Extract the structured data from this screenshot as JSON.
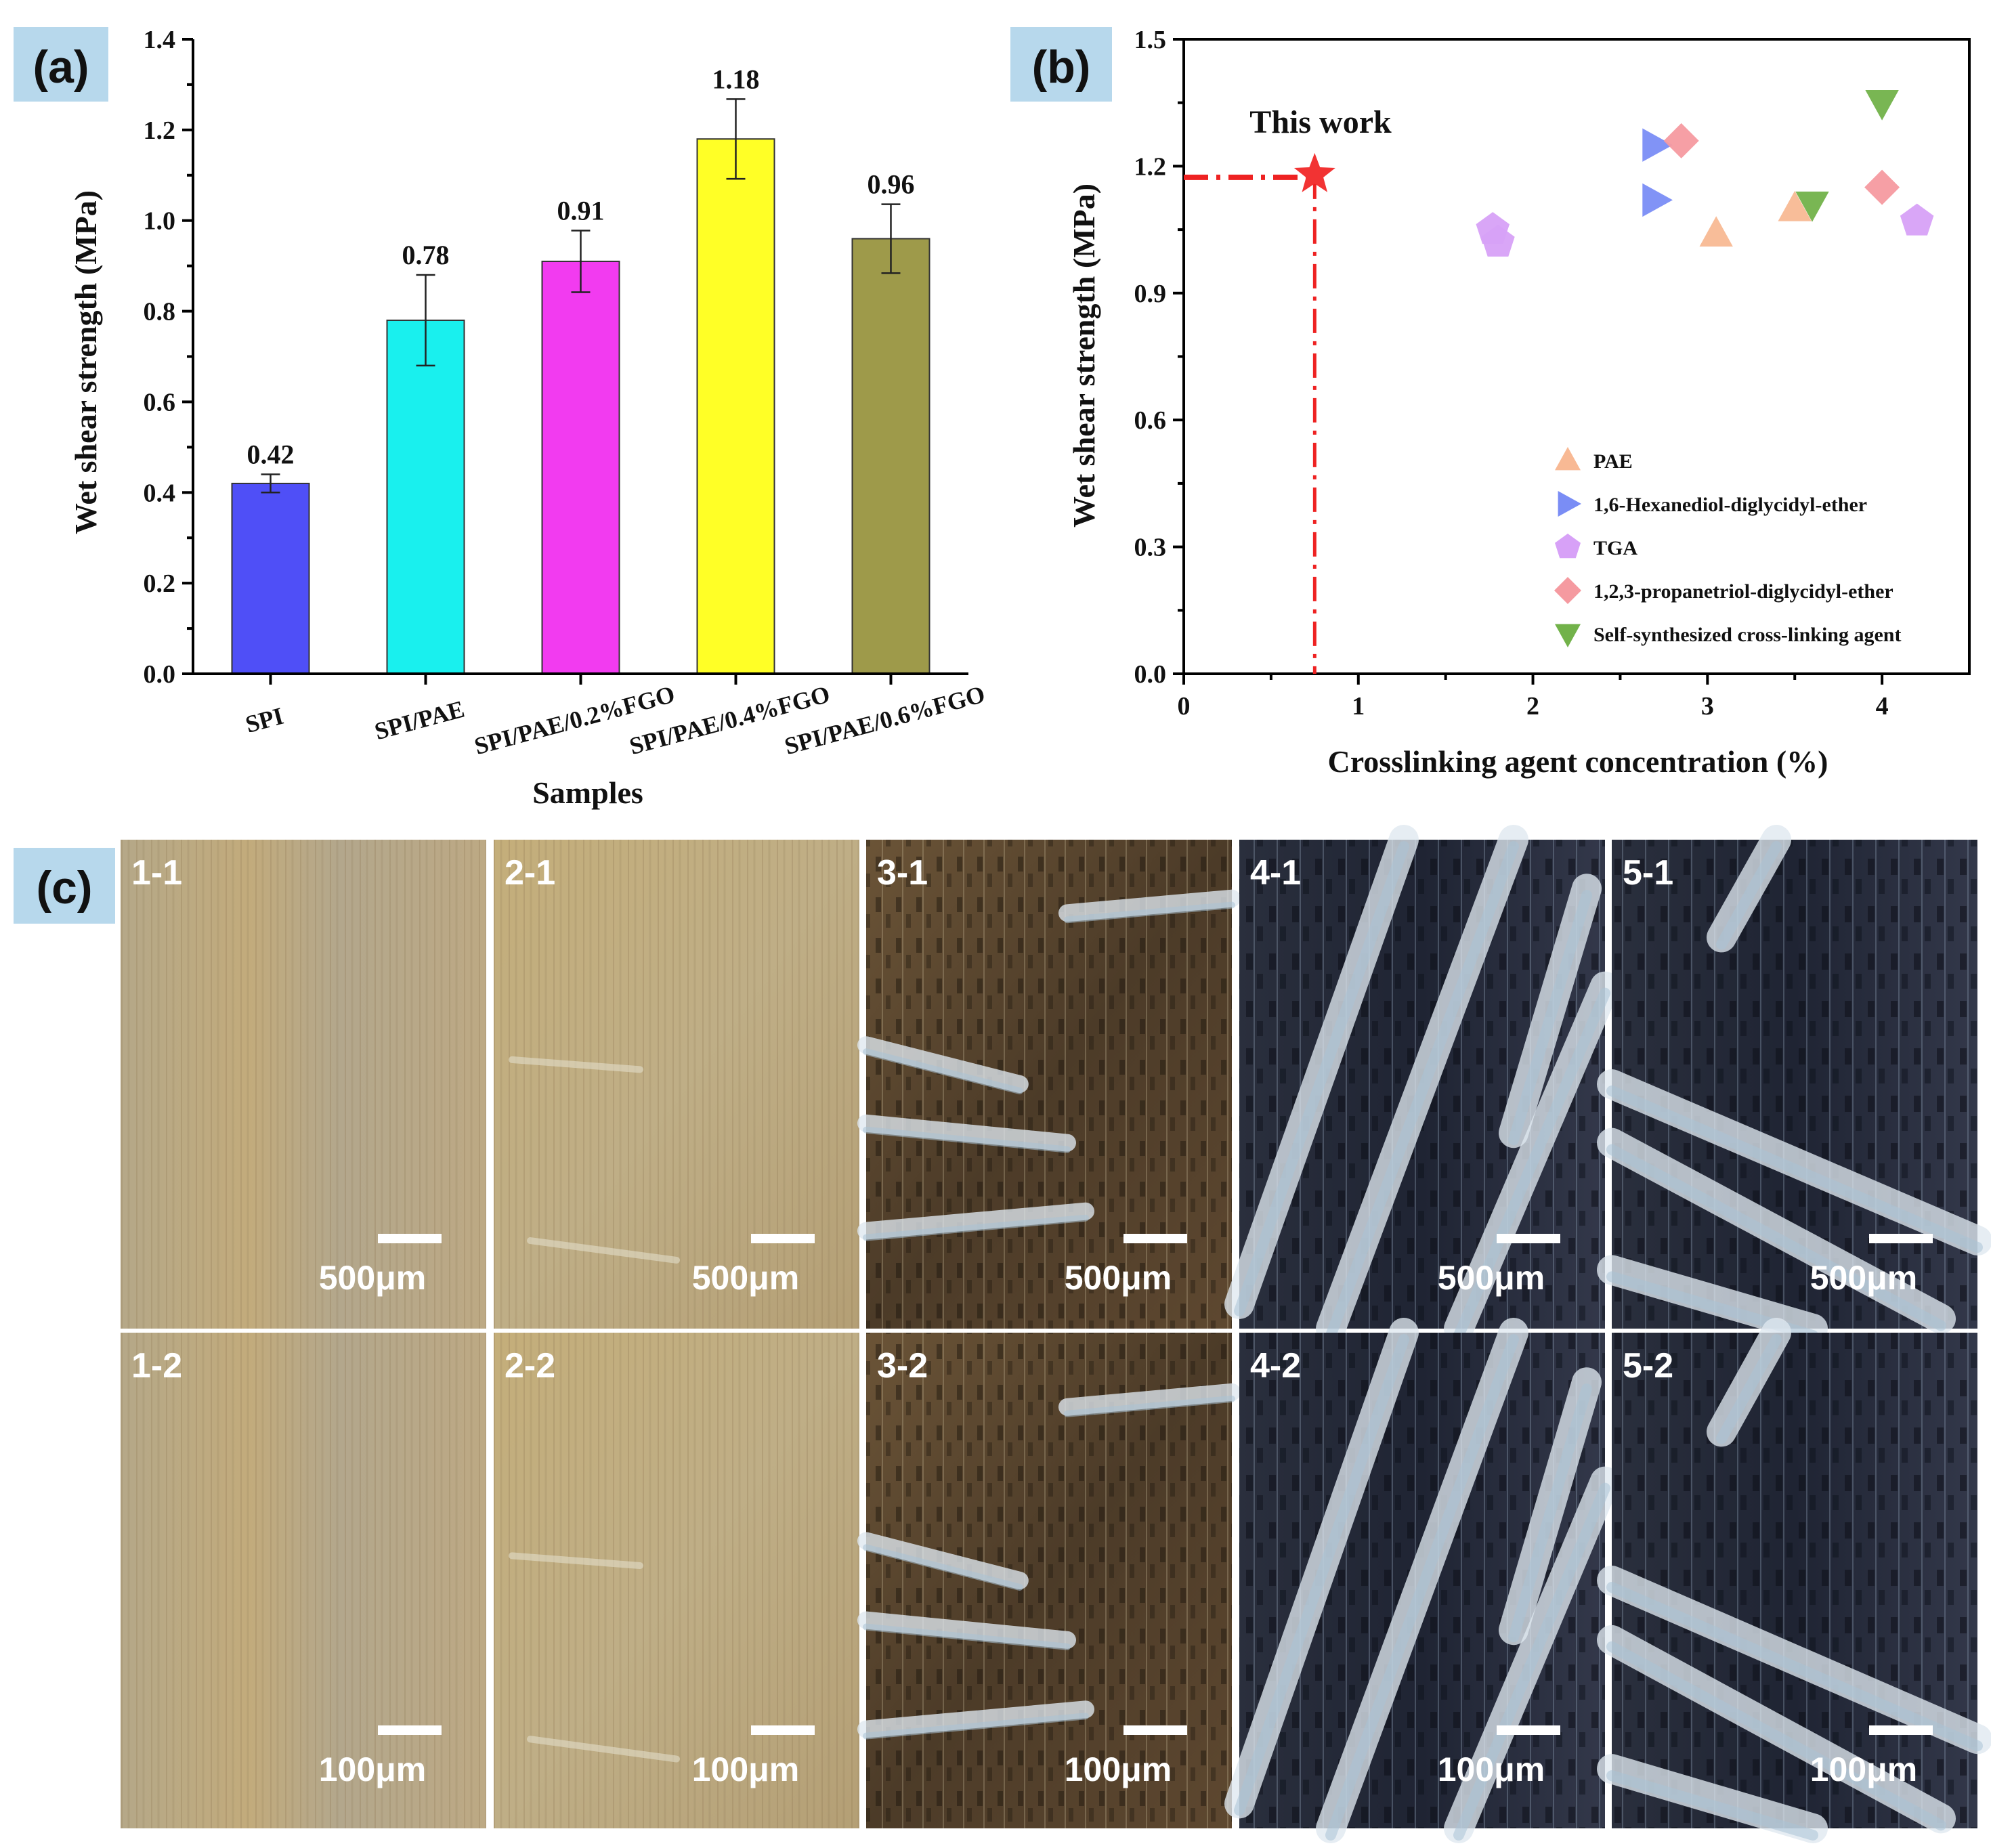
{
  "panels": {
    "a": {
      "label": "(a)"
    },
    "b": {
      "label": "(b)"
    },
    "c": {
      "label": "(c)"
    }
  },
  "colors": {
    "panel_label_bg": "#b7d8ec",
    "bar_SPI": "#4f4ff7",
    "bar_SPI_PAE": "#19f0ee",
    "bar_02": "#f23bf0",
    "bar_04": "#ffff26",
    "bar_06": "#9e9a4a",
    "PAE": "#f8b994",
    "hexanediol": "#7a8df5",
    "TGA": "#d7a1f7",
    "propanetriol": "#f59aa0",
    "self": "#72b24a",
    "this_work": "#f23333"
  },
  "chart_data": [
    {
      "type": "bar",
      "title": "",
      "xlabel": "Samples",
      "ylabel": "Wet shear strength (MPa)",
      "ylim": [
        0.0,
        1.4
      ],
      "yticks": [
        "0.0",
        "0.2",
        "0.4",
        "0.6",
        "0.8",
        "1.0",
        "1.2",
        "1.4"
      ],
      "categories": [
        "SPI",
        "SPI/PAE",
        "SPI/PAE/0.2%FGO",
        "SPI/PAE/0.4%FGO",
        "SPI/PAE/0.6%FGO"
      ],
      "values": [
        0.42,
        0.78,
        0.91,
        1.18,
        0.96
      ],
      "value_labels": [
        "0.42",
        "0.78",
        "0.91",
        "1.18",
        "0.96"
      ],
      "errors": [
        0.02,
        0.1,
        0.068,
        0.088,
        0.076
      ]
    },
    {
      "type": "scatter",
      "xlabel": "Crosslinking agent concentration (%)",
      "ylabel": "Wet shear strength (MPa)",
      "xlim": [
        0,
        4.5
      ],
      "ylim": [
        0.0,
        1.5
      ],
      "xticks": [
        "0",
        "1",
        "2",
        "3",
        "4"
      ],
      "yticks": [
        "0.0",
        "0.3",
        "0.6",
        "0.9",
        "1.2",
        "1.5"
      ],
      "annotation": "This work",
      "this_work": {
        "x": 0.75,
        "y": 1.18
      },
      "series": [
        {
          "name": "PAE",
          "marker": "triangle-up",
          "points": [
            [
              3.05,
              1.04
            ],
            [
              3.5,
              1.1
            ]
          ]
        },
        {
          "name": "1,6-Hexanediol-diglycidyl-ether",
          "marker": "triangle-right",
          "points": [
            [
              2.7,
              1.25
            ],
            [
              2.7,
              1.12
            ]
          ]
        },
        {
          "name": "TGA",
          "marker": "pentagon",
          "points": [
            [
              1.77,
              1.05
            ],
            [
              1.8,
              1.02
            ],
            [
              4.2,
              1.07
            ]
          ]
        },
        {
          "name": "1,2,3-propanetriol-diglycidyl-ether",
          "marker": "diamond",
          "points": [
            [
              2.85,
              1.26
            ],
            [
              4.0,
              1.15
            ]
          ]
        },
        {
          "name": "Self-synthesized cross-linking agent",
          "marker": "triangle-down",
          "points": [
            [
              4.0,
              1.35
            ],
            [
              3.6,
              1.11
            ]
          ]
        }
      ]
    }
  ],
  "micrographs": {
    "row1": [
      {
        "id": "1-1",
        "scale": "500μm"
      },
      {
        "id": "2-1",
        "scale": "500μm"
      },
      {
        "id": "3-1",
        "scale": "500μm"
      },
      {
        "id": "4-1",
        "scale": "500μm"
      },
      {
        "id": "5-1",
        "scale": "500μm"
      }
    ],
    "row2": [
      {
        "id": "1-2",
        "scale": "100μm"
      },
      {
        "id": "2-2",
        "scale": "100μm"
      },
      {
        "id": "3-2",
        "scale": "100μm"
      },
      {
        "id": "4-2",
        "scale": "100μm"
      },
      {
        "id": "5-2",
        "scale": "100μm"
      }
    ]
  }
}
